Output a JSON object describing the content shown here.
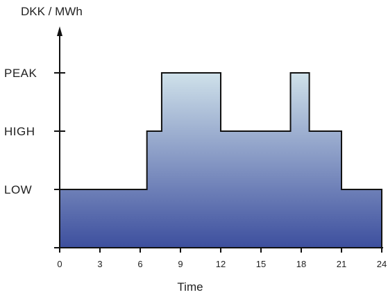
{
  "chart_data": {
    "type": "area",
    "title": "",
    "xlabel": "Time",
    "ylabel": "DKK / MWh",
    "xlim": [
      0,
      24
    ],
    "xticks": [
      0,
      3,
      6,
      9,
      12,
      15,
      18,
      21,
      24
    ],
    "yticks": [
      {
        "label": "LOW",
        "value": 1
      },
      {
        "label": "HIGH",
        "value": 2
      },
      {
        "label": "PEAK",
        "value": 3
      }
    ],
    "ylim": [
      0,
      3.9
    ],
    "grid": false,
    "legend": "none",
    "series": [
      {
        "step": "post",
        "x": [
          0,
          6.5,
          7.6,
          12,
          17.2,
          18.6,
          21,
          24
        ],
        "y": [
          1,
          2,
          3,
          2,
          3,
          2,
          1,
          1
        ]
      }
    ],
    "colors": {
      "fill_top": "#cfe1ea",
      "fill_bottom": "#3d4f9e",
      "fill_band": "#56659f",
      "axis": "#111111",
      "text": "#222222"
    }
  }
}
